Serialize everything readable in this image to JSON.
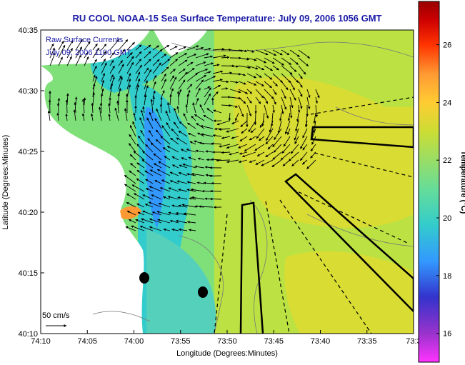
{
  "map": {
    "title": "RU COOL  NOAA-15  Sea Surface Temperature:  July 09, 2006 1056 GMT",
    "legend_line1": "Raw Surface Currents",
    "legend_line2": "July 09, 2006 1100 GMT",
    "scale_label": "50 cm/s",
    "xlabel": "Longitude (Degrees:Minutes)",
    "ylabel": "Latitude (Degrees:Minutes)",
    "x_ticks": [
      "74:10",
      "74:05",
      "74:00",
      "73:55",
      "73:50",
      "73:45",
      "73:40",
      "73:35",
      "73:3"
    ],
    "y_ticks": [
      "40:35",
      "40:30",
      "40:25",
      "40:20",
      "40:15",
      "40:10"
    ],
    "colors": {
      "water_base": "#66dd99",
      "land": "#ffffff",
      "title": "#1a1aa6",
      "arrows": "#000000",
      "markers": "#000000"
    }
  },
  "colorbar": {
    "label": "Temperature (°C)",
    "ticks": [
      "26",
      "24",
      "22",
      "20",
      "18",
      "16"
    ],
    "range": [
      15,
      27.5
    ],
    "colors": [
      "#ff33ff",
      "#9933cc",
      "#3333cc",
      "#3399ff",
      "#33cccc",
      "#66dd99",
      "#99dd66",
      "#ccdd33",
      "#ffcc33",
      "#ff9933",
      "#ff3300",
      "#cc0000",
      "#990000"
    ]
  }
}
